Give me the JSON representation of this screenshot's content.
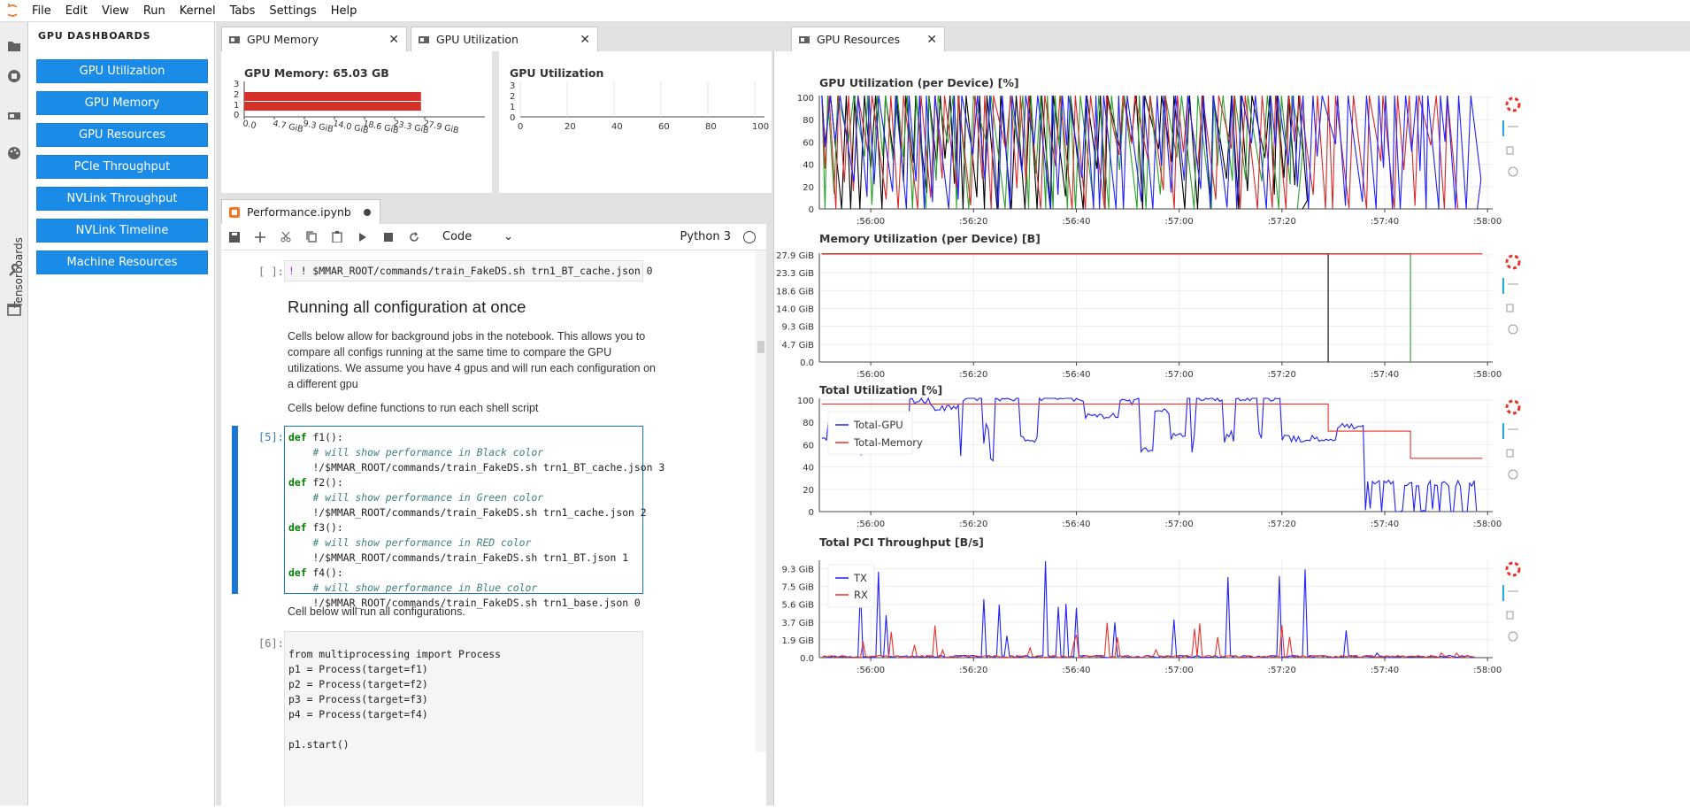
{
  "menubar": {
    "items": [
      "File",
      "Edit",
      "View",
      "Run",
      "Kernel",
      "Tabs",
      "Settings",
      "Help"
    ]
  },
  "rail": {
    "tensorboards_label": "Tensorboards"
  },
  "dashboards": {
    "title": "GPU DASHBOARDS",
    "buttons": [
      "GPU Utilization",
      "GPU Memory",
      "GPU Resources",
      "PCIe Throughput",
      "NVLink Throughput",
      "NVLink Timeline",
      "Machine Resources"
    ],
    "accent": "#1a8ce8"
  },
  "tabs": {
    "gpu_memory": "GPU Memory",
    "gpu_utilization": "GPU Utilization",
    "gpu_resources": "GPU Resources",
    "notebook": "Performance.ipynb"
  },
  "notebook": {
    "cell_type": "Code",
    "kernel": "Python 3",
    "prompts": {
      "c4": "[ ]:",
      "c5": "[5]:",
      "c6": "[6]:"
    },
    "cell4": "! $MMAR_ROOT/commands/train_FakeDS.sh trn1_BT_cache.json 0",
    "heading": "Running all configuration at once",
    "para1": [
      "Cells below allow for background jobs in the notebook. This allows you to",
      "compare all configs running at the same time to compare the GPU",
      "utilizations. We assume you have 4 gpus and will run each configuration on",
      "a different gpu"
    ],
    "para2": "Cells below define functions to run each shell script",
    "cell5": {
      "funcs": [
        "f1",
        "f2",
        "f3",
        "f4"
      ],
      "comments": [
        "# will show performance in Black color",
        "# will show performance in Green color",
        "# will show performance in RED color",
        "# will show performance in Blue color"
      ],
      "cmd_prefix": "!/$MMAR_ROOT/commands/train_FakeDS.sh ",
      "configs": [
        "trn1_BT_cache.json 3",
        "trn1_cache.json 2",
        "trn1_BT.json 1",
        "trn1_base.json 0"
      ]
    },
    "para3": "Cell below will run all configurations.",
    "cell6": [
      "from multiprocessing import Process",
      "p1 = Process(target=f1)",
      "p2 = Process(target=f2)",
      "p3 = Process(target=f3)",
      "p4 = Process(target=f4)",
      "",
      "p1.start()"
    ]
  },
  "gpu_memory_widget": {
    "title": "GPU Memory: 65.03 GB",
    "y_ticks": [
      "0",
      "1",
      "2",
      "3"
    ],
    "x_ticks": [
      "0.0",
      "4.7 GiB",
      "9.3 GiB",
      "14.0 GiB",
      "18.6 GiB",
      "23.3 GiB",
      "27.9 GiB"
    ],
    "bars_fraction": [
      0.97,
      0.97
    ],
    "bar_color": "#d6302a"
  },
  "gpu_util_widget": {
    "title": "GPU Utilization",
    "y_ticks": [
      "0",
      "1",
      "2",
      "3"
    ],
    "x_ticks": [
      "0",
      "20",
      "40",
      "60",
      "80",
      "100"
    ]
  },
  "chart_data": [
    {
      "type": "line",
      "title": "GPU Utilization (per Device) [%]",
      "x": [
        "55:50",
        "58:00"
      ],
      "x_ticks": [
        ":56:00",
        ":56:20",
        ":56:40",
        ":57:00",
        ":57:20",
        ":57:40",
        ":58:00"
      ],
      "y_ticks": [
        "0",
        "20",
        "40",
        "60",
        "80",
        "100"
      ],
      "ylim": [
        0,
        100
      ],
      "series": [
        {
          "color": "#000000",
          "pattern": "mostly 100 with frequent drops to 0"
        },
        {
          "color": "#2ca02c",
          "pattern": "mostly 100 with frequent drops to 0"
        },
        {
          "color": "#d62728",
          "pattern": "mostly 100 with frequent drops to 0"
        },
        {
          "color": "#1f1fff",
          "pattern": "mostly 100 with frequent drops to 0"
        }
      ]
    },
    {
      "type": "line",
      "title": "Memory Utilization (per Device) [B]",
      "x_ticks": [
        ":56:00",
        ":56:20",
        ":56:40",
        ":57:00",
        ":57:20",
        ":57:40",
        ":58:00"
      ],
      "y_ticks": [
        "0.0",
        "4.7 GiB",
        "9.3 GiB",
        "14.0 GiB",
        "18.6 GiB",
        "23.3 GiB",
        "27.9 GiB"
      ],
      "ylim_gib": [
        0,
        30
      ],
      "series": [
        {
          "color": "#000000",
          "values_gib": [
            29.8,
            29.8,
            0
          ],
          "x": [
            ":55:50",
            ":57:29",
            ":57:29"
          ]
        },
        {
          "color": "#2ca02c",
          "values_gib": [
            29.8,
            29.8,
            0
          ],
          "x": [
            ":55:50",
            ":57:45",
            ":57:45"
          ]
        },
        {
          "color": "#d62728",
          "values_gib": [
            29.8,
            29.8
          ],
          "x": [
            ":55:50",
            ":57:59"
          ]
        }
      ]
    },
    {
      "type": "line",
      "title": "Total Utilization [%]",
      "x_ticks": [
        ":56:00",
        ":56:20",
        ":56:40",
        ":57:00",
        ":57:20",
        ":57:40",
        ":58:00"
      ],
      "y_ticks": [
        "0",
        "20",
        "40",
        "60",
        "80",
        "100"
      ],
      "ylim": [
        0,
        100
      ],
      "legend": "top-left",
      "series": [
        {
          "name": "Total-GPU",
          "color": "#1f1fff",
          "pattern": "fluctuating 50-100, dropping to 0-30 after :57:35"
        },
        {
          "name": "Total-Memory",
          "color": "#e8332b",
          "steps": [
            [
              ":55:50",
              95
            ],
            [
              ":57:29",
              95
            ],
            [
              ":57:29",
              71
            ],
            [
              ":57:45",
              71
            ],
            [
              ":57:45",
              47
            ],
            [
              ":57:59",
              47
            ]
          ]
        }
      ]
    },
    {
      "type": "line",
      "title": "Total PCI Throughput [B/s]",
      "x_ticks": [
        ":56:00",
        ":56:20",
        ":56:40",
        ":57:00",
        ":57:20",
        ":57:40",
        ":58:00"
      ],
      "y_ticks": [
        "0.0",
        "1.9 GiB",
        "3.7 GiB",
        "5.6 GiB",
        "7.5 GiB",
        "9.3 GiB"
      ],
      "ylim_gib": [
        0,
        10.5
      ],
      "legend": "top-left",
      "series": [
        {
          "name": "TX",
          "color": "#1f1fff",
          "pattern": "spiky, peaks up to ~10.5 GiB"
        },
        {
          "name": "RX",
          "color": "#e8332b",
          "pattern": "spiky, peaks up to ~4 GiB"
        }
      ]
    }
  ]
}
